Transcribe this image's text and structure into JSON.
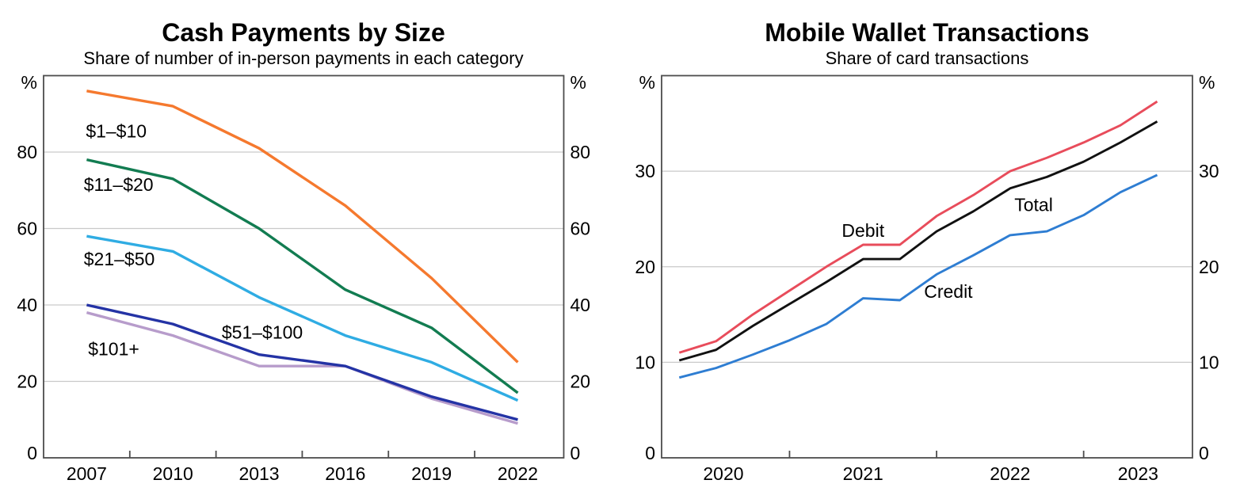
{
  "figure": {
    "background": "#ffffff",
    "axis_color": "#4d4d4d",
    "gridline_color": "#c9c9c9"
  },
  "chart_data": [
    {
      "type": "line",
      "title": "Cash Payments by Size",
      "subtitle": "Share of number of in-person payments in each category",
      "unit": "%",
      "x": [
        2007,
        2010,
        2013,
        2016,
        2019,
        2022
      ],
      "xlim": [
        2005.5,
        2023.6
      ],
      "ylim": [
        0,
        100
      ],
      "y_ticks": [
        0,
        20,
        40,
        60,
        80
      ],
      "gridlines": [
        20,
        40,
        60,
        80
      ],
      "x_tick_marks": [
        2008.5,
        2011.5,
        2014.5,
        2017.5,
        2020.5
      ],
      "x_labels": [
        {
          "x": 2007,
          "text": "2007"
        },
        {
          "x": 2010,
          "text": "2010"
        },
        {
          "x": 2013,
          "text": "2013"
        },
        {
          "x": 2016,
          "text": "2016"
        },
        {
          "x": 2019,
          "text": "2019"
        },
        {
          "x": 2022,
          "text": "2022"
        }
      ],
      "grid": true,
      "legend_position": "inline-labels",
      "series": [
        {
          "name": "$1–$10",
          "color": "#F5792E",
          "values": [
            96,
            92,
            81,
            66,
            47,
            25
          ],
          "label": {
            "x": 2006.97,
            "y": 85.5,
            "anchor": "start"
          }
        },
        {
          "name": "$11–$20",
          "color": "#127C51",
          "values": [
            78,
            73,
            60,
            44,
            34,
            17
          ],
          "label": {
            "x": 2006.9,
            "y": 71.5,
            "anchor": "start"
          }
        },
        {
          "name": "$21–$50",
          "color": "#2FACE3",
          "values": [
            58,
            54,
            42,
            32,
            25,
            15
          ],
          "label": {
            "x": 2006.9,
            "y": 52,
            "anchor": "start"
          }
        },
        {
          "name": "$101+",
          "color": "#B79CCB",
          "values": [
            38,
            32,
            24,
            24,
            15.5,
            9
          ],
          "label": {
            "x": 2007.05,
            "y": 28.5,
            "anchor": "start"
          }
        },
        {
          "name": "$51–$100",
          "color": "#2433A5",
          "values": [
            40,
            35,
            27,
            24,
            16,
            10
          ],
          "label": {
            "x": 2011.7,
            "y": 32.8,
            "anchor": "start"
          }
        }
      ]
    },
    {
      "type": "line",
      "title": "Mobile Wallet Transactions",
      "subtitle": "Share of card transactions",
      "unit": "%",
      "x": [
        2020.25,
        2020.5,
        2020.75,
        2021.0,
        2021.25,
        2021.5,
        2021.75,
        2022.0,
        2022.25,
        2022.5,
        2022.75,
        2023.0,
        2023.25,
        2023.5
      ],
      "xlim": [
        2020.13,
        2023.74
      ],
      "ylim": [
        0,
        40
      ],
      "y_ticks": [
        0,
        10,
        20,
        30
      ],
      "gridlines": [
        10,
        20,
        30
      ],
      "x_tick_marks": [
        2021,
        2022,
        2023
      ],
      "x_labels": [
        {
          "x": 2020.55,
          "text": "2020"
        },
        {
          "x": 2021.5,
          "text": "2021"
        },
        {
          "x": 2022.5,
          "text": "2022"
        },
        {
          "x": 2023.37,
          "text": "2023"
        }
      ],
      "grid": true,
      "legend_position": "inline-labels",
      "series": [
        {
          "name": "Debit",
          "color": "#E84C5B",
          "values": [
            11.0,
            12.2,
            15.0,
            17.5,
            20.0,
            22.3,
            22.3,
            25.3,
            27.5,
            30.0,
            31.4,
            33.0,
            34.8,
            37.3
          ],
          "label": {
            "x": 2021.5,
            "y": 23.8,
            "anchor": "middle"
          }
        },
        {
          "name": "Total",
          "color": "#111111",
          "values": [
            10.2,
            11.3,
            13.8,
            16.1,
            18.4,
            20.8,
            20.8,
            23.7,
            25.8,
            28.2,
            29.4,
            31.0,
            33.0,
            35.2
          ],
          "label": {
            "x": 2022.66,
            "y": 26.5,
            "anchor": "middle"
          }
        },
        {
          "name": "Credit",
          "color": "#2E7DD2",
          "values": [
            8.4,
            9.4,
            10.8,
            12.3,
            14.0,
            16.7,
            16.5,
            19.2,
            21.2,
            23.3,
            23.7,
            25.4,
            27.8,
            29.6
          ],
          "label": {
            "x": 2022.08,
            "y": 17.4,
            "anchor": "middle"
          }
        }
      ]
    }
  ]
}
